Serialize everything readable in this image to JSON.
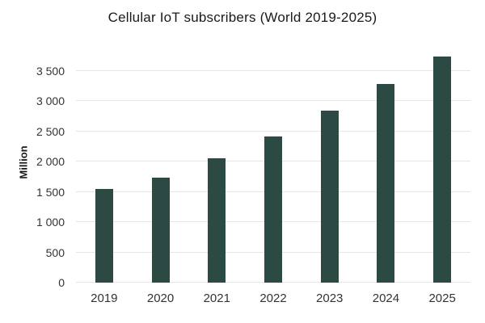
{
  "chart_data": {
    "type": "bar",
    "title": "Cellular IoT subscribers (World 2019-2025)",
    "xlabel": "",
    "ylabel": "Million",
    "categories": [
      "2019",
      "2020",
      "2021",
      "2022",
      "2023",
      "2024",
      "2025"
    ],
    "values": [
      1550,
      1740,
      2060,
      2420,
      2850,
      3290,
      3740
    ],
    "series_name": "Cellular IoT subscribers",
    "ylim": [
      0,
      3880
    ],
    "yticks": [
      0,
      500,
      1000,
      1500,
      2000,
      2500,
      3000,
      3500
    ],
    "ytick_labels": [
      "0",
      "500",
      "1 000",
      "1 500",
      "2 000",
      "2 500",
      "3 000",
      "3 500"
    ],
    "grid": "horizontal-only",
    "legend": "none",
    "colors": {
      "bar": "#2d4944",
      "gridline": "#e6e6e6",
      "title_text": "#1a1a1a",
      "tick_text": "#333333",
      "background": "#ffffff"
    }
  }
}
